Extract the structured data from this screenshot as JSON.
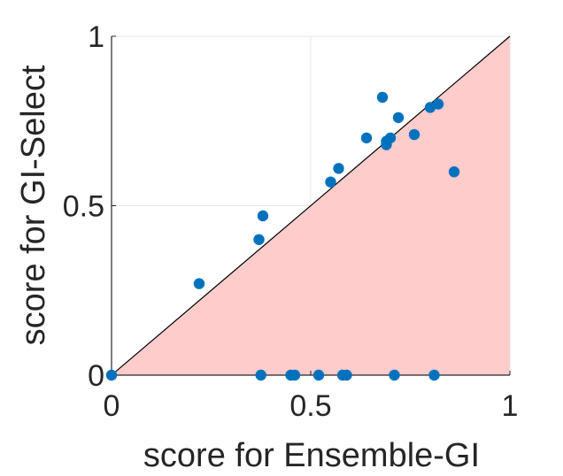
{
  "chart_data": {
    "type": "scatter",
    "title": "",
    "xlabel": "score for Ensemble-GI",
    "ylabel": "score for GI-Select",
    "xlim": [
      0,
      1
    ],
    "ylim": [
      0,
      1
    ],
    "xticks": [
      "0",
      "0.5",
      "1"
    ],
    "yticks": [
      "0",
      "0.5",
      "1"
    ],
    "grid": true,
    "diagonal_line": true,
    "shaded_region": "below diagonal (x > y)",
    "colors": {
      "points": "#0072BD",
      "shade": "#FFCCCC",
      "diagonal": "#000000",
      "grid": "#E5E5E5",
      "axes": "#262626"
    },
    "points": [
      {
        "x": 0.0,
        "y": 0.0
      },
      {
        "x": 0.22,
        "y": 0.27
      },
      {
        "x": 0.37,
        "y": 0.4
      },
      {
        "x": 0.38,
        "y": 0.47
      },
      {
        "x": 0.55,
        "y": 0.57
      },
      {
        "x": 0.57,
        "y": 0.61
      },
      {
        "x": 0.64,
        "y": 0.7
      },
      {
        "x": 0.68,
        "y": 0.82
      },
      {
        "x": 0.69,
        "y": 0.68
      },
      {
        "x": 0.69,
        "y": 0.69
      },
      {
        "x": 0.7,
        "y": 0.7
      },
      {
        "x": 0.72,
        "y": 0.76
      },
      {
        "x": 0.76,
        "y": 0.71
      },
      {
        "x": 0.8,
        "y": 0.79
      },
      {
        "x": 0.82,
        "y": 0.8
      },
      {
        "x": 0.86,
        "y": 0.6
      },
      {
        "x": 0.375,
        "y": 0.0
      },
      {
        "x": 0.45,
        "y": 0.0
      },
      {
        "x": 0.46,
        "y": 0.0
      },
      {
        "x": 0.52,
        "y": 0.0
      },
      {
        "x": 0.58,
        "y": 0.0
      },
      {
        "x": 0.59,
        "y": 0.0
      },
      {
        "x": 0.71,
        "y": 0.0
      },
      {
        "x": 0.81,
        "y": 0.0
      }
    ]
  }
}
